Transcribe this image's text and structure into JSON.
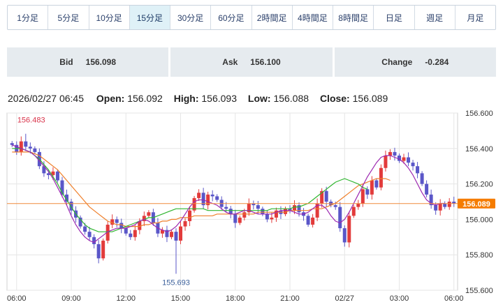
{
  "timeframes": [
    {
      "label": "1分足",
      "active": false
    },
    {
      "label": "5分足",
      "active": false
    },
    {
      "label": "10分足",
      "active": false
    },
    {
      "label": "15分足",
      "active": true
    },
    {
      "label": "30分足",
      "active": false
    },
    {
      "label": "60分足",
      "active": false
    },
    {
      "label": "2時間足",
      "active": false
    },
    {
      "label": "4時間足",
      "active": false
    },
    {
      "label": "8時間足",
      "active": false
    },
    {
      "label": "日足",
      "active": false
    },
    {
      "label": "週足",
      "active": false
    },
    {
      "label": "月足",
      "active": false
    }
  ],
  "quotes": {
    "bid_label": "Bid",
    "bid_value": "156.098",
    "ask_label": "Ask",
    "ask_value": "156.100",
    "change_label": "Change",
    "change_value": "-0.284"
  },
  "ohlc": {
    "datetime": "2026/02/27 06:45",
    "open_label": "Open:",
    "open": "156.092",
    "high_label": "High:",
    "high": "156.093",
    "low_label": "Low:",
    "low": "156.088",
    "close_label": "Close:",
    "close": "156.089"
  },
  "colors": {
    "up": "#e23b3b",
    "down": "#5a56c8",
    "ma_short": "#9c27b0",
    "ma_mid": "#2fb52f",
    "ma_long": "#ef7f2a",
    "current_line": "#f08a3c",
    "current_badge": "#f57c00",
    "annotation_high": "#d9334a",
    "annotation_low": "#3a5f9a"
  },
  "chart_data": {
    "type": "candlestick",
    "ylim": [
      155.6,
      156.6
    ],
    "yticks": [
      "156.600",
      "156.400",
      "156.200",
      "156.000",
      "155.800",
      "155.600"
    ],
    "xticks": [
      {
        "label": "06:00",
        "index": 1
      },
      {
        "label": "09:00",
        "index": 13
      },
      {
        "label": "12:00",
        "index": 25
      },
      {
        "label": "15:00",
        "index": 37
      },
      {
        "label": "18:00",
        "index": 49
      },
      {
        "label": "21:00",
        "index": 61
      },
      {
        "label": "02/27",
        "index": 73
      },
      {
        "label": "03:00",
        "index": 85
      },
      {
        "label": "06:00",
        "index": 97
      }
    ],
    "current_price": "156.089",
    "annotations": {
      "high_label": "156.483",
      "high_index": 3,
      "high_value": 156.483,
      "low_label": "155.693",
      "low_index": 36,
      "low_value": 155.693
    },
    "closes": [
      156.42,
      156.38,
      156.44,
      156.41,
      156.4,
      156.38,
      156.3,
      156.26,
      156.25,
      156.27,
      156.22,
      156.14,
      156.1,
      156.05,
      156.01,
      155.96,
      155.93,
      155.9,
      155.86,
      155.78,
      155.88,
      155.97,
      156.0,
      155.98,
      155.95,
      155.92,
      155.9,
      155.94,
      155.99,
      156.02,
      156.04,
      155.98,
      155.92,
      155.94,
      155.9,
      155.93,
      155.88,
      155.96,
      155.99,
      156.05,
      156.12,
      156.15,
      156.08,
      156.14,
      156.13,
      156.11,
      156.07,
      156.06,
      156.03,
      155.98,
      156.01,
      156.04,
      156.09,
      156.08,
      156.06,
      156.03,
      156.0,
      156.01,
      156.05,
      156.03,
      156.06,
      156.05,
      156.08,
      156.04,
      156.02,
      155.97,
      156.01,
      156.09,
      156.16,
      156.1,
      156.08,
      156.07,
      155.95,
      155.87,
      156.02,
      156.07,
      156.09,
      156.17,
      156.14,
      156.22,
      156.18,
      156.29,
      156.36,
      156.38,
      156.36,
      156.33,
      156.35,
      156.32,
      156.3,
      156.26,
      156.2,
      156.14,
      156.08,
      156.05,
      156.09,
      156.07,
      156.1,
      156.09
    ],
    "ma_short": [
      156.42,
      156.41,
      156.4,
      156.39,
      156.38,
      156.36,
      156.33,
      156.3,
      156.27,
      156.23,
      156.18,
      156.13,
      156.08,
      156.02,
      155.97,
      155.93,
      155.9,
      155.88,
      155.87,
      155.89,
      155.91,
      155.93,
      155.94,
      155.95,
      155.95,
      155.95,
      155.96,
      155.97,
      155.99,
      156.0,
      155.99,
      155.97,
      155.95,
      155.94,
      155.93,
      155.94,
      155.96,
      155.99,
      156.03,
      156.07,
      156.1,
      156.11,
      156.11,
      156.1,
      156.09,
      156.08,
      156.06,
      156.04,
      156.03,
      156.03,
      156.04,
      156.05,
      156.05,
      156.04,
      156.03,
      156.03,
      156.03,
      156.03,
      156.04,
      156.05,
      156.05,
      156.05,
      156.04,
      156.03,
      156.03,
      156.04,
      156.06,
      156.08,
      156.08,
      156.06,
      156.02,
      155.99,
      155.98,
      156.0,
      156.04,
      156.09,
      156.14,
      156.19,
      156.24,
      156.28,
      156.32,
      156.35,
      156.36,
      156.36,
      156.35,
      156.34,
      156.32,
      156.29,
      156.25,
      156.2,
      156.15,
      156.11,
      156.09,
      156.08,
      156.09,
      156.09
    ],
    "ma_mid": [
      156.4,
      156.4,
      156.4,
      156.39,
      156.38,
      156.36,
      156.34,
      156.31,
      156.28,
      156.24,
      156.2,
      156.15,
      156.11,
      156.07,
      156.03,
      156.0,
      155.97,
      155.95,
      155.94,
      155.93,
      155.93,
      155.93,
      155.93,
      155.94,
      155.95,
      155.96,
      155.97,
      155.98,
      155.99,
      156.0,
      156.01,
      156.01,
      156.02,
      156.03,
      156.04,
      156.05,
      156.06,
      156.06,
      156.06,
      156.06,
      156.06,
      156.06,
      156.06,
      156.05,
      156.05,
      156.05,
      156.05,
      156.05,
      156.05,
      156.05,
      156.05,
      156.05,
      156.05,
      156.05,
      156.05,
      156.05,
      156.05,
      156.06,
      156.06,
      156.06,
      156.06,
      156.06,
      156.07,
      156.07,
      156.08,
      156.09,
      156.11,
      156.13,
      156.15,
      156.17,
      156.19,
      156.21,
      156.22,
      156.23,
      156.22,
      156.21,
      156.2,
      156.18,
      156.17
    ],
    "ma_long": [
      156.38,
      156.38,
      156.38,
      156.38,
      156.38,
      156.37,
      156.36,
      156.34,
      156.32,
      156.3,
      156.28,
      156.25,
      156.22,
      156.19,
      156.16,
      156.13,
      156.1,
      156.07,
      156.05,
      156.03,
      156.01,
      155.99,
      155.98,
      155.97,
      155.97,
      155.96,
      155.96,
      155.96,
      155.96,
      155.97,
      155.97,
      155.98,
      155.98,
      155.99,
      155.99,
      156.0,
      156.0,
      156.01,
      156.01,
      156.01,
      156.02,
      156.02,
      156.02,
      156.02,
      156.02,
      156.03,
      156.03,
      156.03,
      156.03,
      156.03,
      156.03,
      156.03,
      156.03,
      156.03,
      156.04,
      156.04,
      156.04,
      156.04,
      156.04,
      156.04,
      156.04,
      156.05,
      156.05,
      156.05,
      156.05,
      156.05,
      156.06,
      156.06,
      156.06,
      156.07,
      156.08,
      156.09,
      156.11,
      156.13,
      156.15,
      156.17,
      156.19,
      156.2,
      156.21,
      156.22,
      156.23,
      156.23,
      156.23,
      156.22
    ]
  }
}
